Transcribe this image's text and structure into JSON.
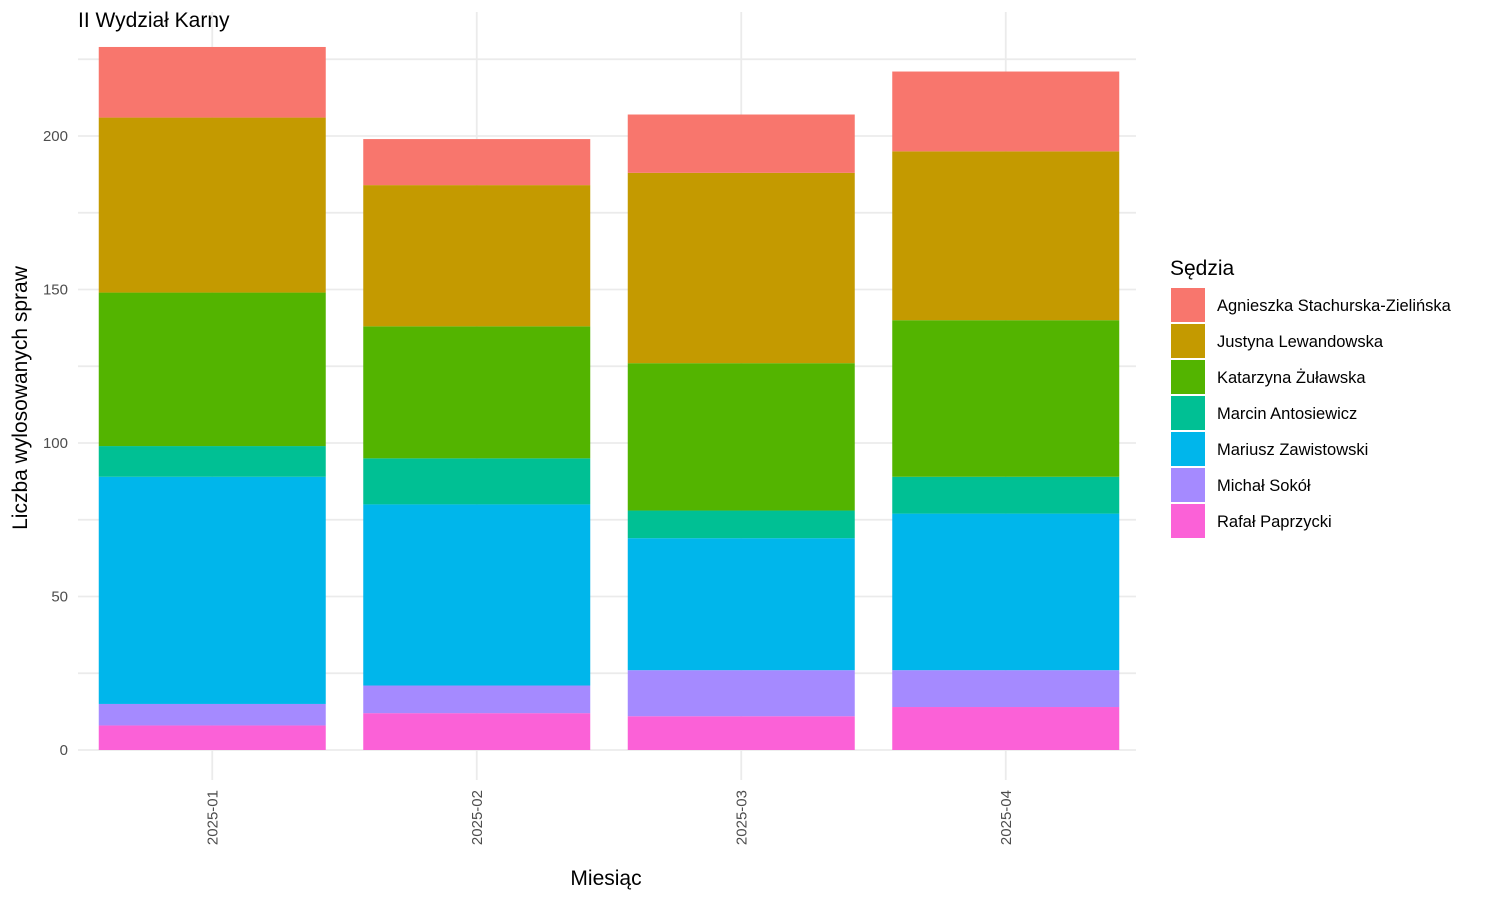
{
  "chart_data": {
    "type": "bar",
    "stacked": true,
    "title": "II Wydział Karny",
    "xlabel": "Miesiąc",
    "ylabel": "Liczba wylosowanych spraw",
    "ylim": [
      0,
      230
    ],
    "yticks": [
      0,
      50,
      100,
      150,
      200
    ],
    "grid": true,
    "legend_title": "Sędzia",
    "legend_position": "right",
    "categories": [
      "2025-01",
      "2025-02",
      "2025-03",
      "2025-04"
    ],
    "series": [
      {
        "name": "Rafał Paprzycki",
        "color": "#FB61D7",
        "values": [
          8,
          12,
          11,
          14
        ]
      },
      {
        "name": "Michał Sokół",
        "color": "#A58AFF",
        "values": [
          7,
          9,
          15,
          12
        ]
      },
      {
        "name": "Mariusz Zawistowski",
        "color": "#00B6EB",
        "values": [
          74,
          59,
          43,
          51
        ]
      },
      {
        "name": "Marcin Antosiewicz",
        "color": "#00C094",
        "values": [
          10,
          15,
          9,
          12
        ]
      },
      {
        "name": "Katarzyna Żuławska",
        "color": "#53B400",
        "values": [
          50,
          43,
          48,
          51
        ]
      },
      {
        "name": "Justyna Lewandowska",
        "color": "#C49A00",
        "values": [
          57,
          46,
          62,
          55
        ]
      },
      {
        "name": "Agnieszka Stachurska-Zielińska",
        "color": "#F8766D",
        "values": [
          23,
          15,
          19,
          26
        ]
      }
    ]
  }
}
